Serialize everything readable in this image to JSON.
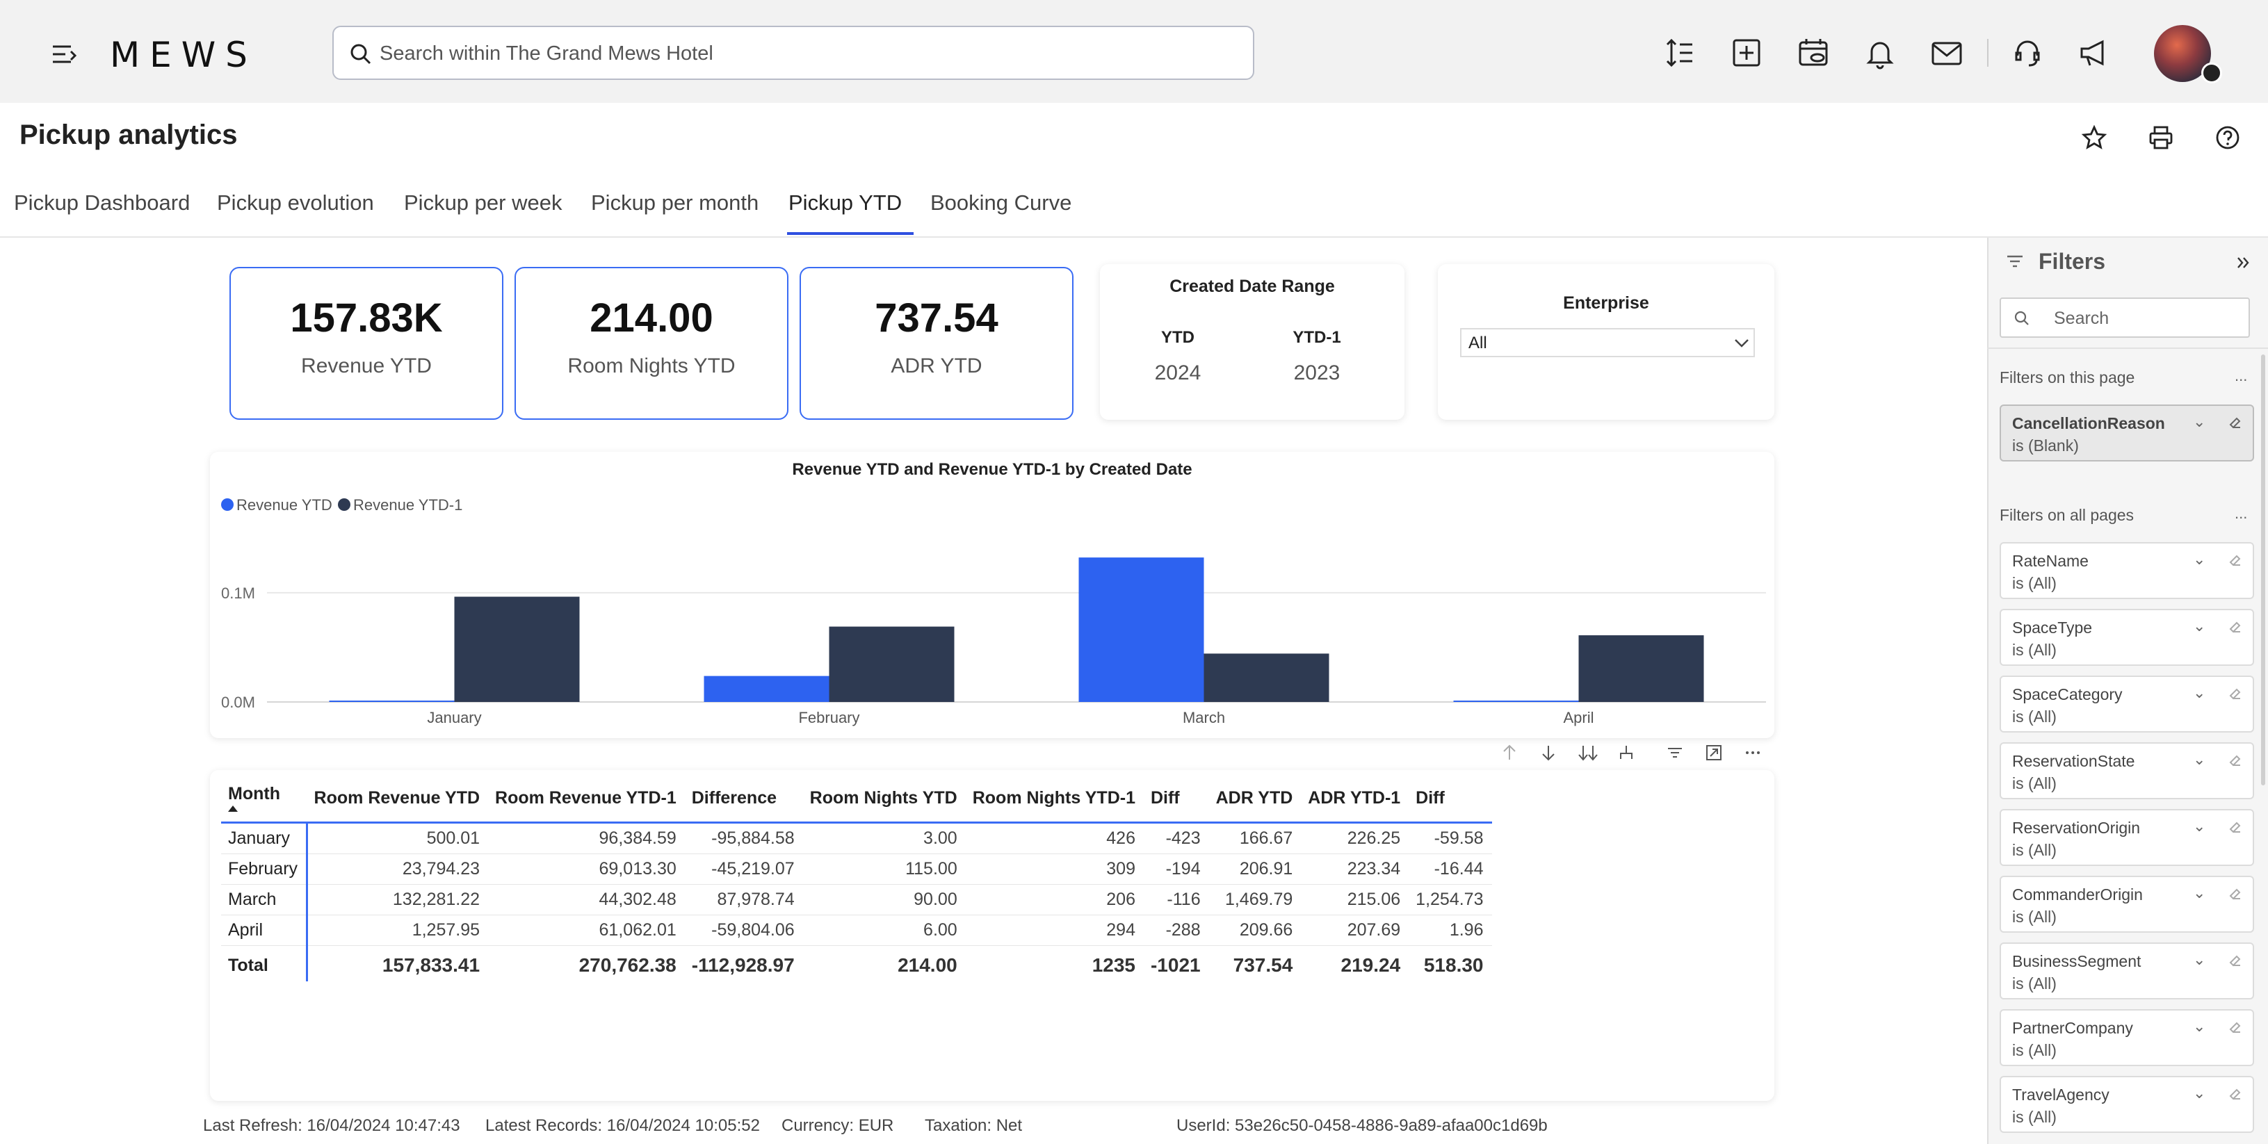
{
  "topbar": {
    "logo": "MEWS",
    "search_placeholder": "Search within The Grand Mews Hotel"
  },
  "header": {
    "title": "Pickup analytics",
    "tabs": [
      {
        "label": "Pickup Dashboard"
      },
      {
        "label": "Pickup evolution"
      },
      {
        "label": "Pickup per week"
      },
      {
        "label": "Pickup per month"
      },
      {
        "label": "Pickup YTD",
        "active": true
      },
      {
        "label": "Booking Curve"
      }
    ]
  },
  "kpis": [
    {
      "value": "157.83K",
      "label": "Revenue YTD"
    },
    {
      "value": "214.00",
      "label": "Room Nights YTD"
    },
    {
      "value": "737.54",
      "label": "ADR YTD"
    }
  ],
  "date_range": {
    "title": "Created Date Range",
    "ytd_label": "YTD",
    "ytd_value": "2024",
    "ytd1_label": "YTD-1",
    "ytd1_value": "2023"
  },
  "enterprise": {
    "title": "Enterprise",
    "selected": "All"
  },
  "chart_data": {
    "type": "bar",
    "title": "Revenue YTD and Revenue YTD-1 by Created Date",
    "categories": [
      "January",
      "February",
      "March",
      "April"
    ],
    "series": [
      {
        "name": "Revenue YTD",
        "color": "#2d62f0",
        "values": [
          500.01,
          23794.23,
          132281.22,
          1257.95
        ]
      },
      {
        "name": "Revenue YTD-1",
        "color": "#2e3a52",
        "values": [
          96384.59,
          69013.3,
          44302.48,
          61062.01
        ]
      }
    ],
    "yticks": [
      {
        "value": 0,
        "label": "0.0M"
      },
      {
        "value": 100000,
        "label": "0.1M"
      }
    ],
    "ylim": [
      0,
      140000
    ],
    "legend_position": "top-left",
    "grid": true
  },
  "table": {
    "columns": [
      "Month",
      "Room Revenue YTD",
      "Room Revenue YTD-1",
      "Difference",
      "Room Nights YTD",
      "Room Nights YTD-1",
      "Diff",
      "ADR YTD",
      "ADR YTD-1",
      "Diff"
    ],
    "rows": [
      [
        "January",
        "500.01",
        "96,384.59",
        "-95,884.58",
        "3.00",
        "426",
        "-423",
        "166.67",
        "226.25",
        "-59.58"
      ],
      [
        "February",
        "23,794.23",
        "69,013.30",
        "-45,219.07",
        "115.00",
        "309",
        "-194",
        "206.91",
        "223.34",
        "-16.44"
      ],
      [
        "March",
        "132,281.22",
        "44,302.48",
        "87,978.74",
        "90.00",
        "206",
        "-116",
        "1,469.79",
        "215.06",
        "1,254.73"
      ],
      [
        "April",
        "1,257.95",
        "61,062.01",
        "-59,804.06",
        "6.00",
        "294",
        "-288",
        "209.66",
        "207.69",
        "1.96"
      ]
    ],
    "total": [
      "Total",
      "157,833.41",
      "270,762.38",
      "-112,928.97",
      "214.00",
      "1235",
      "-1021",
      "737.54",
      "219.24",
      "518.30"
    ]
  },
  "footer": {
    "last_refresh": "Last Refresh: 16/04/2024 10:47:43",
    "latest_records": "Latest Records: 16/04/2024 10:05:52",
    "currency": "Currency: EUR",
    "taxation": "Taxation: Net",
    "user_id": "UserId: 53e26c50-0458-4886-9a89-afaa00c1d69b"
  },
  "filters": {
    "title": "Filters",
    "search_placeholder": "Search",
    "on_this_page_label": "Filters on this page",
    "on_all_pages_label": "Filters on all pages",
    "more_label": "...",
    "page_filters": [
      {
        "name": "CancellationReason",
        "state": "is (Blank)"
      }
    ],
    "all_filters": [
      {
        "name": "RateName",
        "state": "is (All)"
      },
      {
        "name": "SpaceType",
        "state": "is (All)"
      },
      {
        "name": "SpaceCategory",
        "state": "is (All)"
      },
      {
        "name": "ReservationState",
        "state": "is (All)"
      },
      {
        "name": "ReservationOrigin",
        "state": "is (All)"
      },
      {
        "name": "CommanderOrigin",
        "state": "is (All)"
      },
      {
        "name": "BusinessSegment",
        "state": "is (All)"
      },
      {
        "name": "PartnerCompany",
        "state": "is (All)"
      },
      {
        "name": "TravelAgency",
        "state": "is (All)"
      }
    ]
  }
}
